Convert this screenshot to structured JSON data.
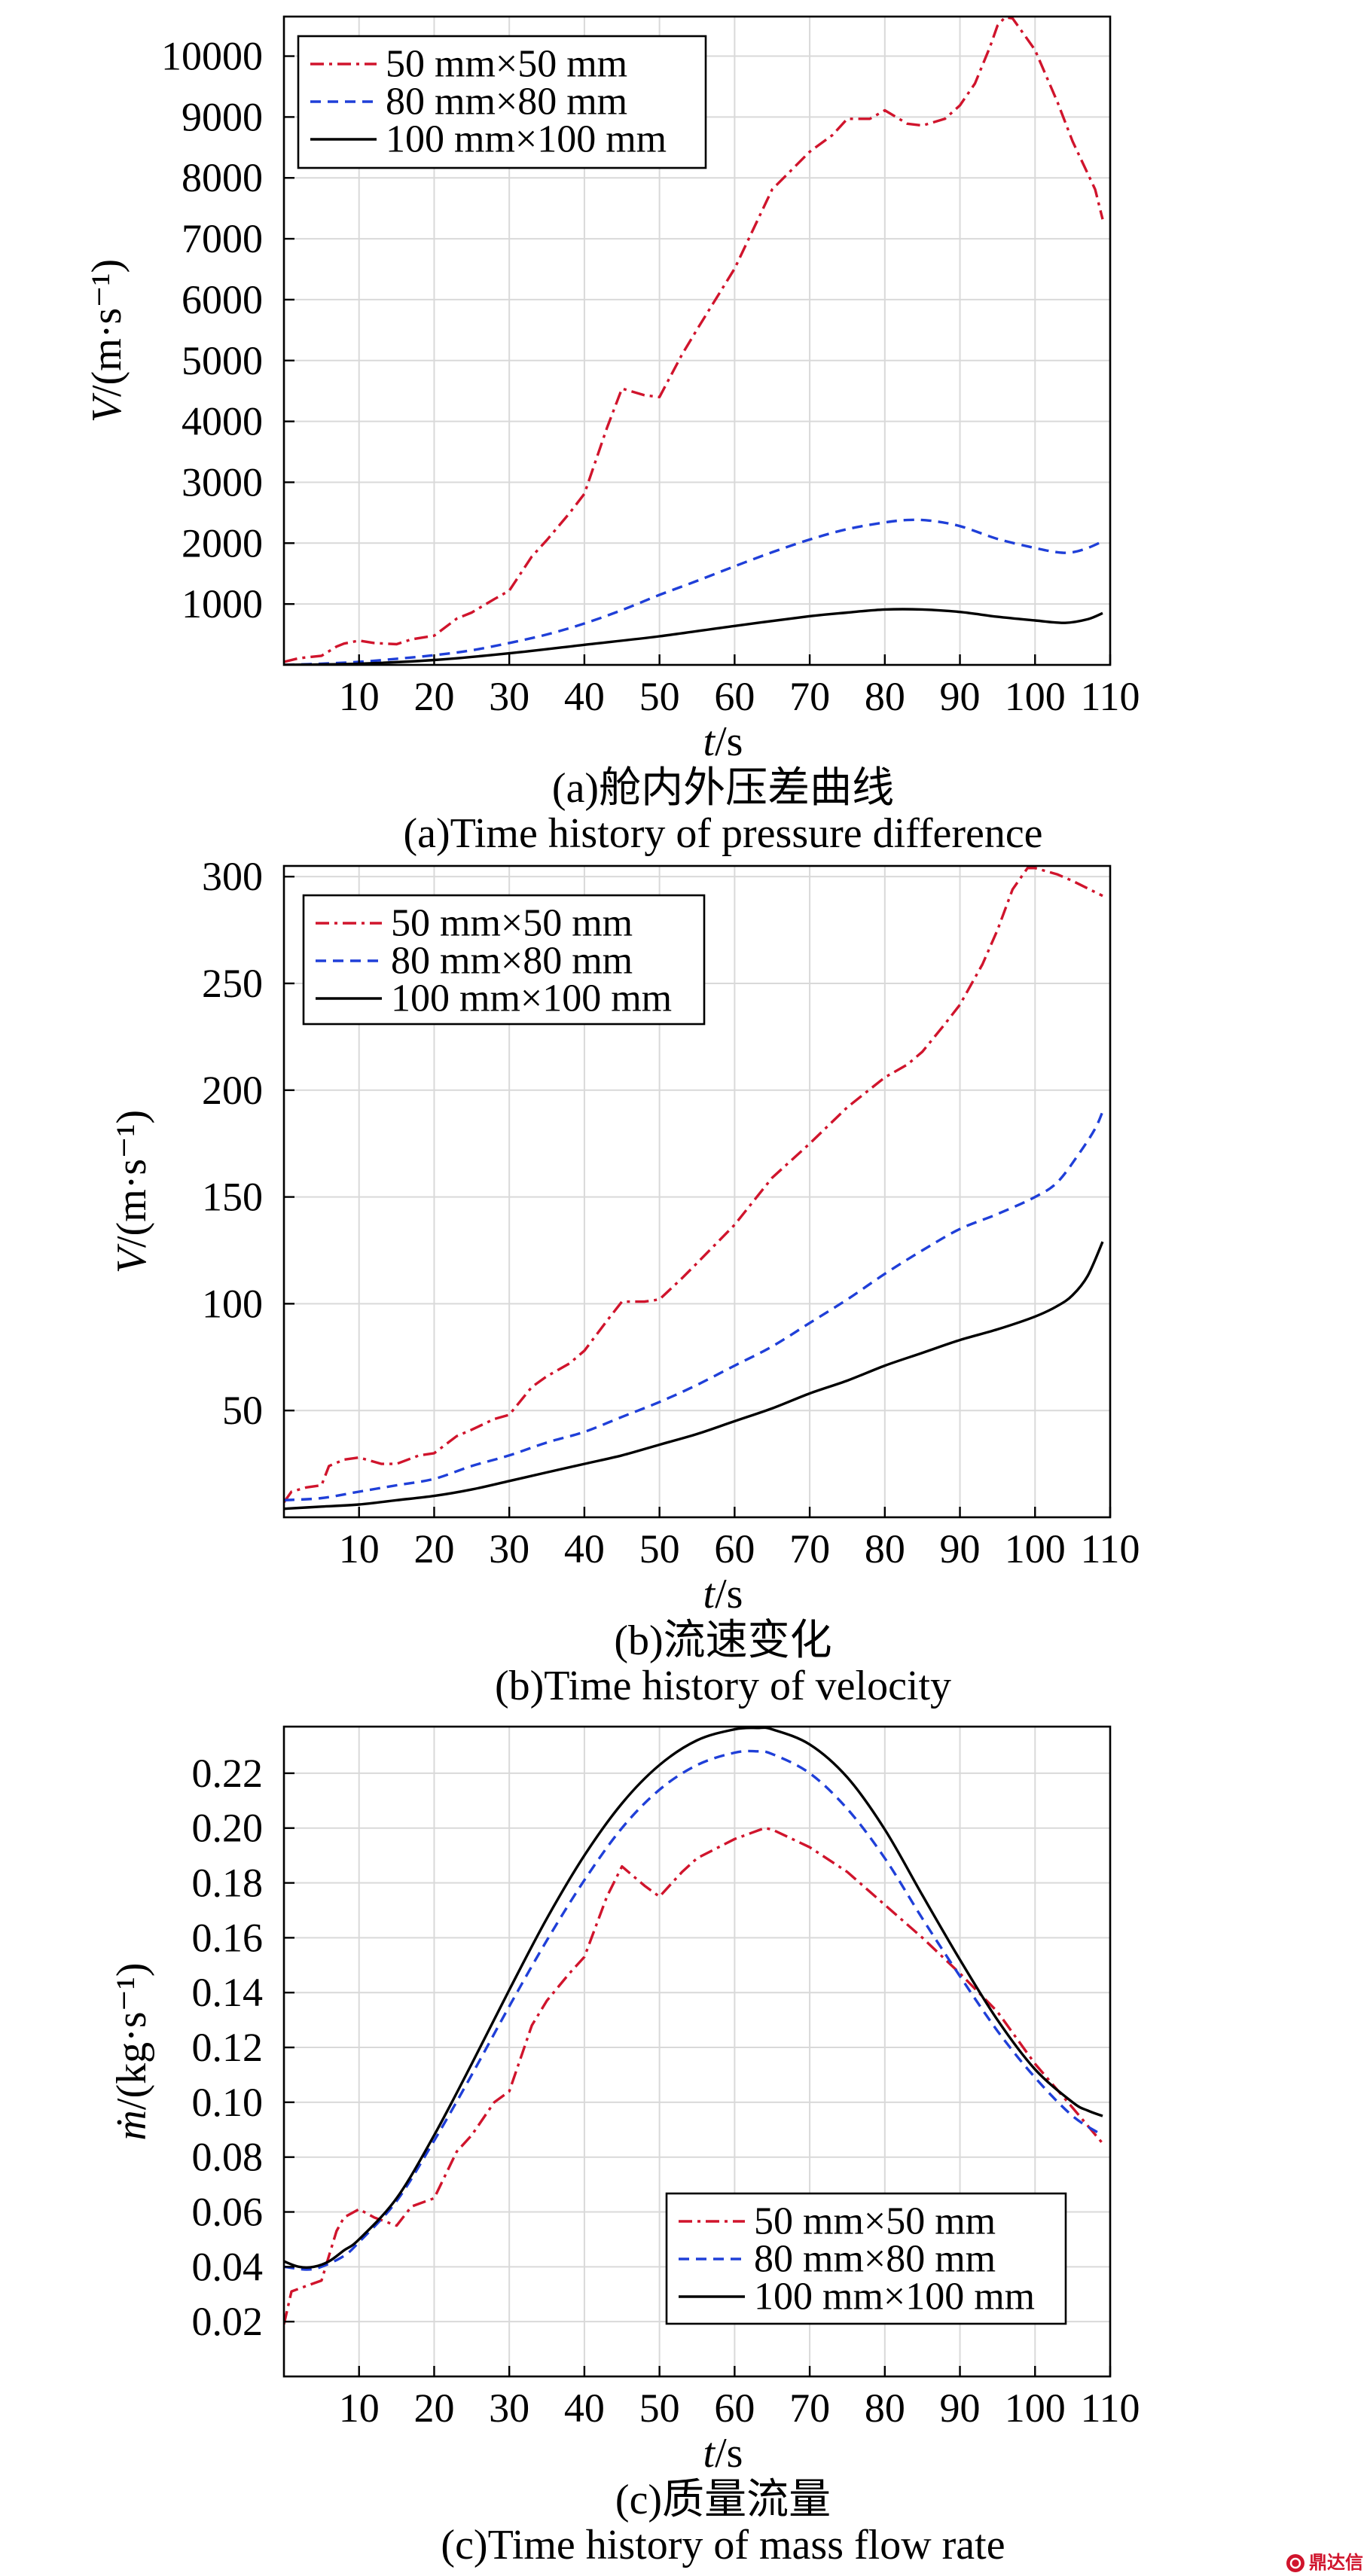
{
  "figure": {
    "watermark": "鼎达信"
  },
  "chart_data": [
    {
      "type": "line",
      "caption_zh": "(a)舱内外压差曲线",
      "caption_en": "(a)Time history of pressure difference",
      "xlabel": "t/s",
      "ylabel": "V/(m·s⁻¹)",
      "xlim": [
        0,
        110
      ],
      "ylim": [
        0,
        10650
      ],
      "xticks": [
        "10",
        "20",
        "30",
        "40",
        "50",
        "60",
        "70",
        "80",
        "90",
        "100",
        "110"
      ],
      "yticks": [
        "1000",
        "2000",
        "3000",
        "4000",
        "5000",
        "6000",
        "7000",
        "8000",
        "9000",
        "10000"
      ],
      "grid": true,
      "legend": "top-left",
      "series": [
        {
          "name": "50 mm×50 mm",
          "color": "#d0142c",
          "style": "dash-dot",
          "x": [
            0,
            2,
            5,
            7,
            8,
            10,
            12,
            15,
            17,
            20,
            23,
            25,
            28,
            30,
            33,
            35,
            38,
            40,
            43,
            45,
            48,
            50,
            53,
            55,
            60,
            65,
            70,
            73,
            75,
            78,
            80,
            83,
            85,
            88,
            90,
            92,
            94,
            95,
            96,
            97,
            98,
            100,
            103,
            105,
            108,
            109
          ],
          "y": [
            50,
            110,
            150,
            300,
            350,
            400,
            360,
            340,
            420,
            480,
            760,
            860,
            1080,
            1220,
            1780,
            2050,
            2490,
            2810,
            3890,
            4540,
            4430,
            4400,
            5100,
            5510,
            6510,
            7810,
            8430,
            8700,
            8970,
            8970,
            9110,
            8890,
            8860,
            8970,
            9190,
            9550,
            10150,
            10500,
            10640,
            10620,
            10450,
            10100,
            9240,
            8600,
            7810,
            7320
          ]
        },
        {
          "name": "80 mm×80 mm",
          "color": "#1f3fd8",
          "style": "dashed",
          "x": [
            0,
            5,
            10,
            15,
            20,
            25,
            30,
            35,
            40,
            45,
            50,
            55,
            60,
            65,
            70,
            75,
            80,
            83,
            86,
            90,
            95,
            100,
            103,
            105,
            107,
            109
          ],
          "y": [
            0,
            20,
            50,
            100,
            160,
            240,
            360,
            500,
            680,
            900,
            1150,
            1380,
            1620,
            1850,
            2060,
            2230,
            2340,
            2380,
            2370,
            2280,
            2070,
            1920,
            1850,
            1850,
            1920,
            2030
          ]
        },
        {
          "name": "100 mm×100 mm",
          "color": "#000000",
          "style": "solid",
          "x": [
            0,
            10,
            20,
            30,
            40,
            50,
            60,
            70,
            75,
            80,
            85,
            90,
            95,
            100,
            104,
            107,
            109
          ],
          "y": [
            0,
            20,
            80,
            190,
            330,
            470,
            640,
            800,
            860,
            910,
            910,
            870,
            790,
            730,
            690,
            750,
            850
          ]
        }
      ]
    },
    {
      "type": "line",
      "caption_zh": "(b)流速变化",
      "caption_en": "(b)Time history of velocity",
      "xlabel": "t/s",
      "ylabel": "V/(m·s⁻¹)",
      "xlim": [
        0,
        110
      ],
      "ylim": [
        0,
        305
      ],
      "xticks": [
        "10",
        "20",
        "30",
        "40",
        "50",
        "60",
        "70",
        "80",
        "90",
        "100",
        "110"
      ],
      "yticks": [
        "50",
        "100",
        "150",
        "200",
        "250",
        "300"
      ],
      "grid": true,
      "legend": "top-left",
      "series": [
        {
          "name": "50 mm×50 mm",
          "color": "#d0142c",
          "style": "dash-dot",
          "x": [
            0,
            1,
            3,
            5,
            6,
            8,
            10,
            13,
            15,
            18,
            20,
            23,
            25,
            28,
            30,
            33,
            35,
            38,
            40,
            43,
            45,
            48,
            50,
            53,
            55,
            60,
            65,
            70,
            75,
            80,
            83,
            85,
            88,
            90,
            93,
            95,
            97,
            99,
            100,
            103,
            105,
            109
          ],
          "y": [
            7,
            12,
            14,
            15,
            24,
            27,
            28,
            25,
            25,
            29,
            30,
            38,
            41,
            46,
            48,
            61,
            66,
            72,
            78,
            92,
            101,
            101,
            102,
            112,
            119,
            137,
            159,
            175,
            192,
            206,
            212,
            218,
            231,
            240,
            259,
            275,
            294,
            304,
            304,
            301,
            298,
            291
          ]
        },
        {
          "name": "80 mm×80 mm",
          "color": "#1f3fd8",
          "style": "dashed",
          "x": [
            0,
            5,
            10,
            15,
            20,
            25,
            30,
            35,
            40,
            45,
            50,
            55,
            60,
            65,
            70,
            75,
            80,
            85,
            90,
            95,
            100,
            103,
            106,
            108,
            109
          ],
          "y": [
            8,
            9,
            12,
            15,
            18,
            24,
            29,
            35,
            40,
            47,
            54,
            62,
            71,
            80,
            91,
            102,
            114,
            125,
            135,
            142,
            150,
            157,
            171,
            182,
            190
          ]
        },
        {
          "name": "100 mm×100 mm",
          "color": "#000000",
          "style": "solid",
          "x": [
            0,
            5,
            10,
            15,
            20,
            25,
            30,
            35,
            40,
            45,
            50,
            55,
            60,
            65,
            70,
            75,
            80,
            85,
            90,
            95,
            100,
            103,
            105,
            107,
            109
          ],
          "y": [
            4,
            5,
            6,
            8,
            10,
            13,
            17,
            21,
            25,
            29,
            34,
            39,
            45,
            51,
            58,
            64,
            71,
            77,
            83,
            88,
            94,
            99,
            104,
            113,
            129
          ]
        }
      ]
    },
    {
      "type": "line",
      "caption_zh": "(c)质量流量",
      "caption_en": "(c)Time history of mass flow rate",
      "xlabel": "t/s",
      "ylabel": "ṁ/(kg·s⁻¹)",
      "xlim": [
        0,
        110
      ],
      "ylim": [
        0,
        0.237
      ],
      "xticks": [
        "10",
        "20",
        "30",
        "40",
        "50",
        "60",
        "70",
        "80",
        "90",
        "100",
        "110"
      ],
      "yticks": [
        "0.02",
        "0.04",
        "0.06",
        "0.08",
        "0.10",
        "0.12",
        "0.14",
        "0.16",
        "0.18",
        "0.20",
        "0.22"
      ],
      "grid": true,
      "legend": "bottom-right",
      "series": [
        {
          "name": "50 mm×50 mm",
          "color": "#d0142c",
          "style": "dash-dot",
          "x": [
            0,
            1,
            3,
            5,
            6,
            7,
            8,
            10,
            12,
            14,
            15,
            17,
            20,
            23,
            25,
            28,
            30,
            33,
            35,
            38,
            40,
            43,
            45,
            48,
            50,
            53,
            55,
            60,
            64,
            65,
            70,
            75,
            80,
            85,
            90,
            95,
            100,
            105,
            109
          ],
          "y": [
            0.019,
            0.031,
            0.033,
            0.035,
            0.044,
            0.053,
            0.058,
            0.061,
            0.058,
            0.056,
            0.055,
            0.062,
            0.065,
            0.082,
            0.088,
            0.1,
            0.104,
            0.128,
            0.137,
            0.147,
            0.153,
            0.175,
            0.186,
            0.179,
            0.175,
            0.184,
            0.189,
            0.196,
            0.2,
            0.1995,
            0.193,
            0.184,
            0.172,
            0.16,
            0.147,
            0.133,
            0.114,
            0.098,
            0.085
          ]
        },
        {
          "name": "80 mm×80 mm",
          "color": "#1f3fd8",
          "style": "dashed",
          "x": [
            0,
            3,
            5,
            8,
            10,
            15,
            20,
            25,
            30,
            35,
            40,
            45,
            50,
            55,
            60,
            63,
            65,
            70,
            75,
            80,
            85,
            90,
            95,
            100,
            105,
            109
          ],
          "y": [
            0.04,
            0.039,
            0.04,
            0.044,
            0.049,
            0.064,
            0.086,
            0.11,
            0.135,
            0.159,
            0.181,
            0.2,
            0.214,
            0.223,
            0.2275,
            0.228,
            0.227,
            0.22,
            0.207,
            0.189,
            0.167,
            0.146,
            0.126,
            0.109,
            0.095,
            0.088
          ]
        },
        {
          "name": "100 mm×100 mm",
          "color": "#000000",
          "style": "solid",
          "x": [
            0,
            2,
            4,
            6,
            8,
            10,
            15,
            20,
            25,
            30,
            35,
            40,
            45,
            50,
            55,
            60,
            63,
            65,
            70,
            75,
            80,
            85,
            90,
            95,
            100,
            105,
            107,
            109
          ],
          "y": [
            0.042,
            0.04,
            0.04,
            0.042,
            0.046,
            0.05,
            0.065,
            0.088,
            0.114,
            0.141,
            0.167,
            0.19,
            0.209,
            0.223,
            0.232,
            0.236,
            0.2365,
            0.236,
            0.2305,
            0.2185,
            0.1995,
            0.1755,
            0.152,
            0.13,
            0.112,
            0.1,
            0.097,
            0.095
          ]
        }
      ]
    }
  ]
}
